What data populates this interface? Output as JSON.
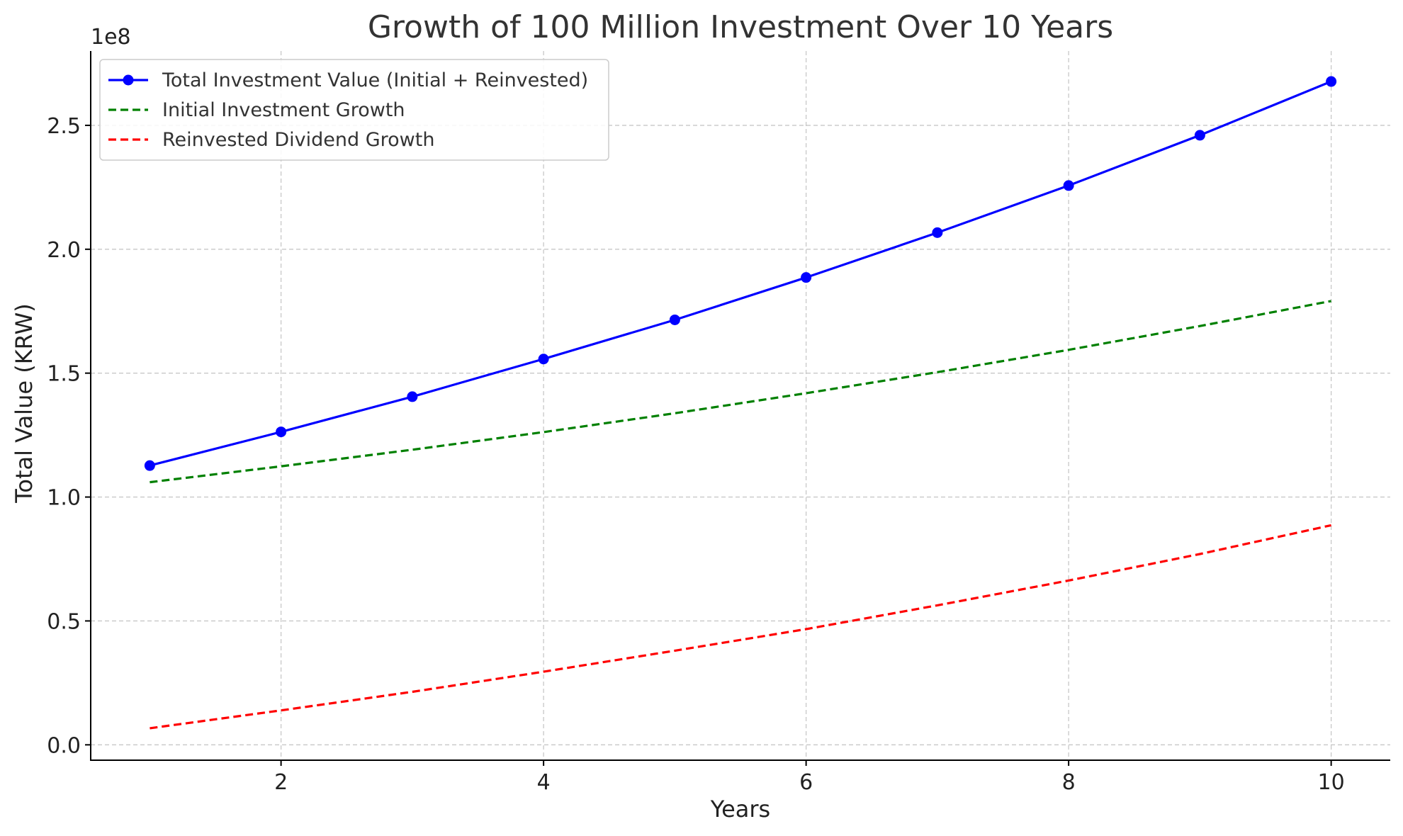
{
  "chart_data": {
    "type": "line",
    "title": "Growth of 100 Million Investment Over 10 Years",
    "xlabel": "Years",
    "ylabel": "Total Value (KRW)",
    "y_offset_label": "1e8",
    "x": [
      1,
      2,
      3,
      4,
      5,
      6,
      7,
      8,
      9,
      10
    ],
    "xlim": [
      0.55,
      10.45
    ],
    "ylim": [
      -6200000,
      280000000
    ],
    "x_ticks": [
      2,
      4,
      6,
      8,
      10
    ],
    "x_tick_labels": [
      "2",
      "4",
      "6",
      "8",
      "10"
    ],
    "y_ticks": [
      0,
      50000000,
      100000000,
      150000000,
      200000000,
      250000000
    ],
    "y_tick_labels": [
      "0.0",
      "0.5",
      "1.0",
      "1.5",
      "2.0",
      "2.5"
    ],
    "grid": true,
    "legend_position": "top-left",
    "series": [
      {
        "name": "Total Investment Value (Initial + Reinvested)",
        "color": "#0000ff",
        "style": "solid",
        "marker": "circle",
        "values": [
          112700000,
          126300000,
          140500000,
          155700000,
          171500000,
          188600000,
          206700000,
          225700000,
          246000000,
          267700000
        ]
      },
      {
        "name": "Initial Investment Growth",
        "color": "#008000",
        "style": "dashed",
        "marker": "none",
        "values": [
          106000000,
          112400000,
          119100000,
          126200000,
          133800000,
          141900000,
          150400000,
          159400000,
          169000000,
          179100000
        ]
      },
      {
        "name": "Reinvested Dividend Growth",
        "color": "#ff0000",
        "style": "dashed",
        "marker": "none",
        "values": [
          6700000,
          13900000,
          21400000,
          29500000,
          38000000,
          46700000,
          56300000,
          66300000,
          77000000,
          88600000
        ]
      }
    ]
  }
}
